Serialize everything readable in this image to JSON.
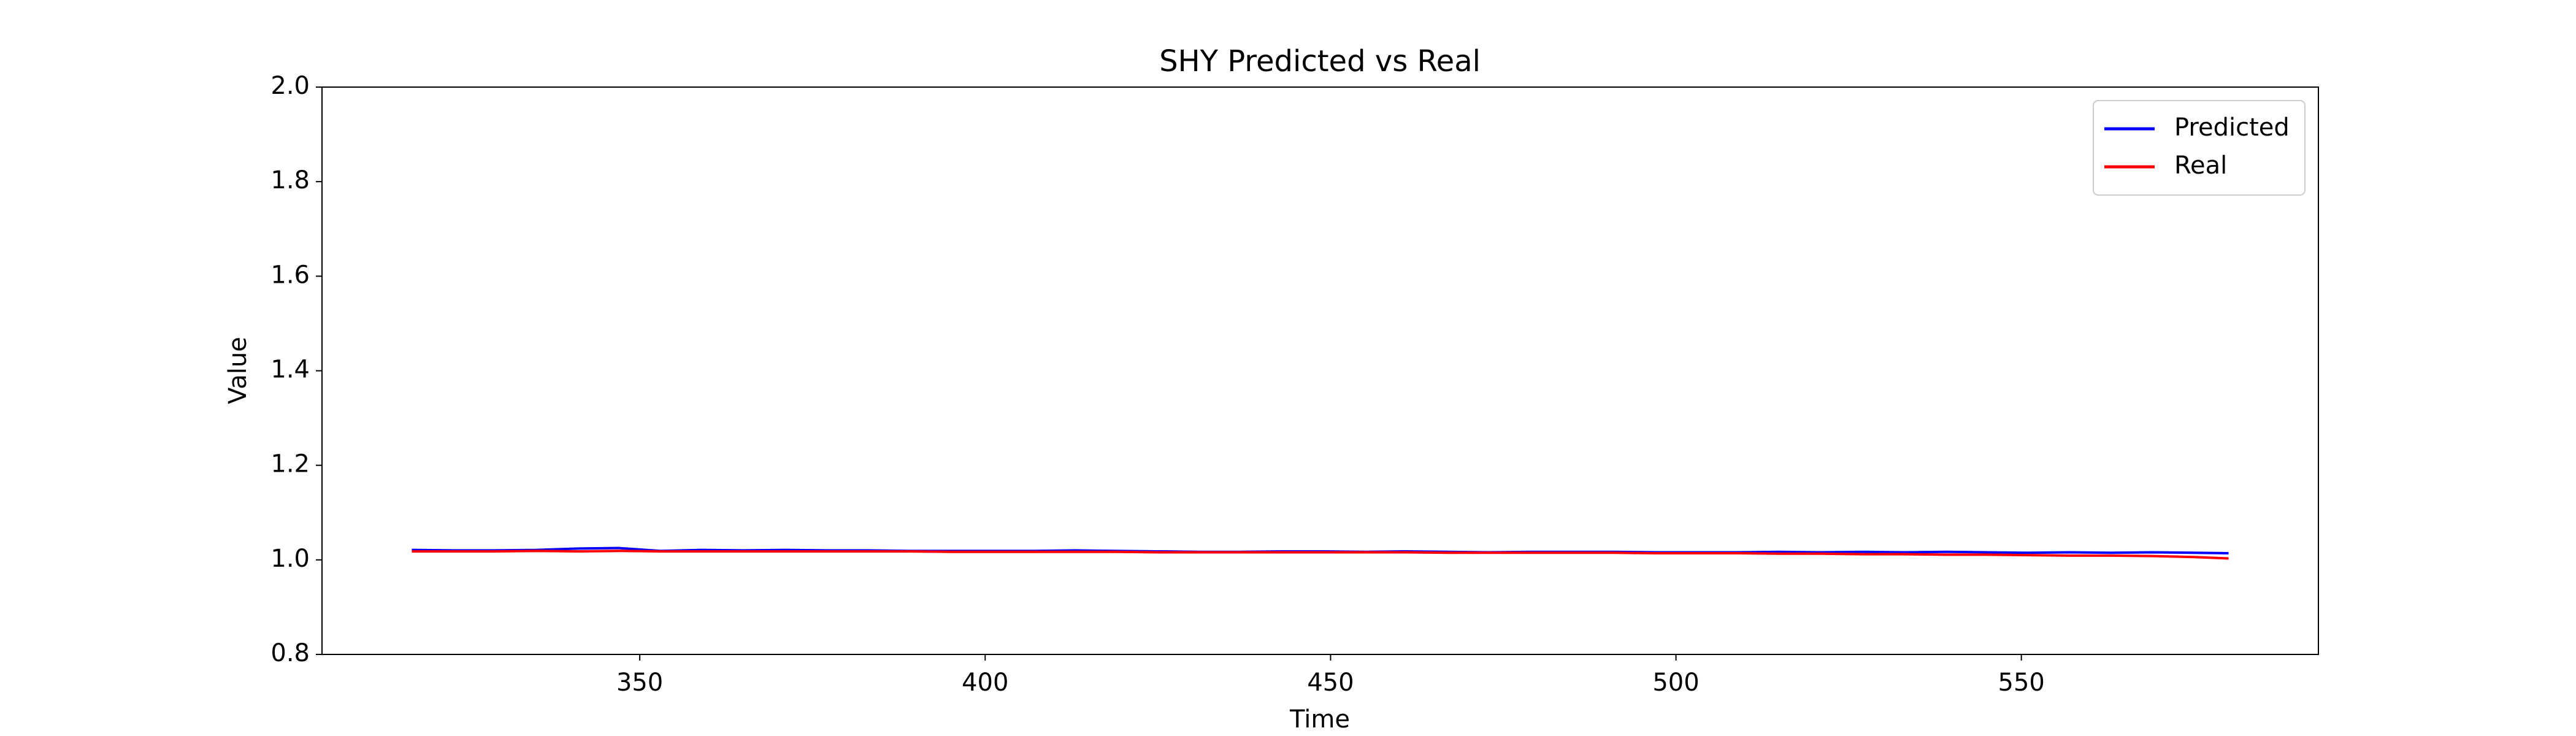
{
  "chart_data": {
    "type": "line",
    "title": "SHY Predicted vs Real",
    "xlabel": "Time",
    "ylabel": "Value",
    "x": [
      317,
      323,
      329,
      335,
      341,
      347,
      353,
      359,
      365,
      371,
      377,
      383,
      389,
      395,
      401,
      407,
      413,
      419,
      425,
      431,
      437,
      443,
      449,
      455,
      461,
      467,
      473,
      479,
      485,
      491,
      497,
      503,
      509,
      515,
      521,
      527,
      533,
      539,
      545,
      551,
      557,
      563,
      569,
      575,
      580
    ],
    "series": [
      {
        "name": "Predicted",
        "color": "#0000ff",
        "values": [
          1.021,
          1.02,
          1.02,
          1.021,
          1.024,
          1.025,
          1.019,
          1.021,
          1.02,
          1.021,
          1.02,
          1.02,
          1.019,
          1.019,
          1.019,
          1.019,
          1.02,
          1.019,
          1.018,
          1.017,
          1.017,
          1.018,
          1.018,
          1.017,
          1.018,
          1.017,
          1.016,
          1.017,
          1.017,
          1.017,
          1.016,
          1.016,
          1.016,
          1.017,
          1.016,
          1.017,
          1.016,
          1.017,
          1.016,
          1.015,
          1.016,
          1.015,
          1.016,
          1.015,
          1.014
        ]
      },
      {
        "name": "Real",
        "color": "#ff0000",
        "values": [
          1.018,
          1.018,
          1.018,
          1.019,
          1.018,
          1.019,
          1.018,
          1.018,
          1.018,
          1.018,
          1.018,
          1.018,
          1.018,
          1.017,
          1.017,
          1.017,
          1.017,
          1.017,
          1.016,
          1.016,
          1.016,
          1.016,
          1.016,
          1.016,
          1.016,
          1.015,
          1.015,
          1.015,
          1.015,
          1.015,
          1.014,
          1.014,
          1.014,
          1.013,
          1.013,
          1.012,
          1.012,
          1.011,
          1.011,
          1.01,
          1.009,
          1.009,
          1.008,
          1.006,
          1.003
        ]
      }
    ],
    "xlim": [
      304,
      593
    ],
    "xticks": [
      350,
      400,
      450,
      500,
      550
    ],
    "ylim": [
      0.8,
      2.0
    ],
    "yticks": [
      0.8,
      {
        "value": 1,
        "label": "1.0"
      },
      1.2,
      1.4,
      1.6,
      1.8,
      {
        "value": 2,
        "label": "2.0"
      }
    ],
    "grid": false,
    "legend": "upper right"
  }
}
